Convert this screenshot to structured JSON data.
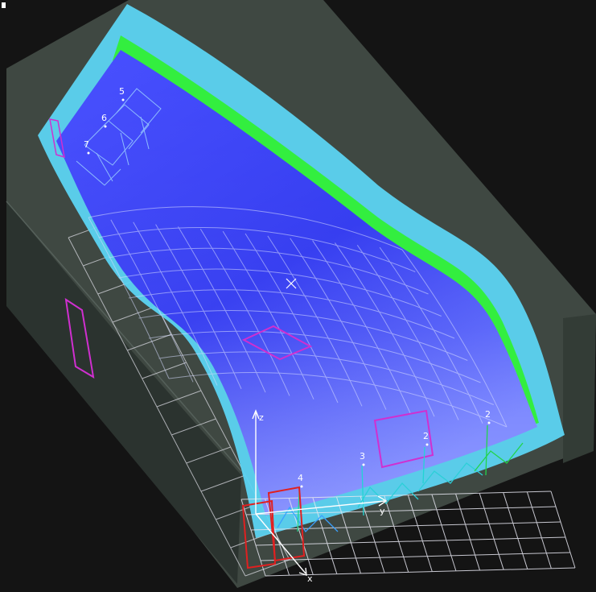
{
  "scene": {
    "background": "#141414",
    "housing_top": "#414a43",
    "housing_side": "#2c3530",
    "panel_fill_top": "#5a62ff",
    "panel_fill_bottom": "#2a33e8",
    "rim_color": "#5cd4f2",
    "green_edge": "#33ee3f",
    "grid_color": "#e6e6f0",
    "marker_color": "#d02fd0",
    "red_marker_color": "#e02020"
  },
  "point_labels": [
    {
      "text": "5"
    },
    {
      "text": "6"
    },
    {
      "text": "7"
    },
    {
      "text": "4"
    },
    {
      "text": "3"
    },
    {
      "text": "2"
    },
    {
      "text": "2"
    }
  ],
  "axes": {
    "z_label": "z",
    "y_label": "y",
    "x_label": "x"
  }
}
